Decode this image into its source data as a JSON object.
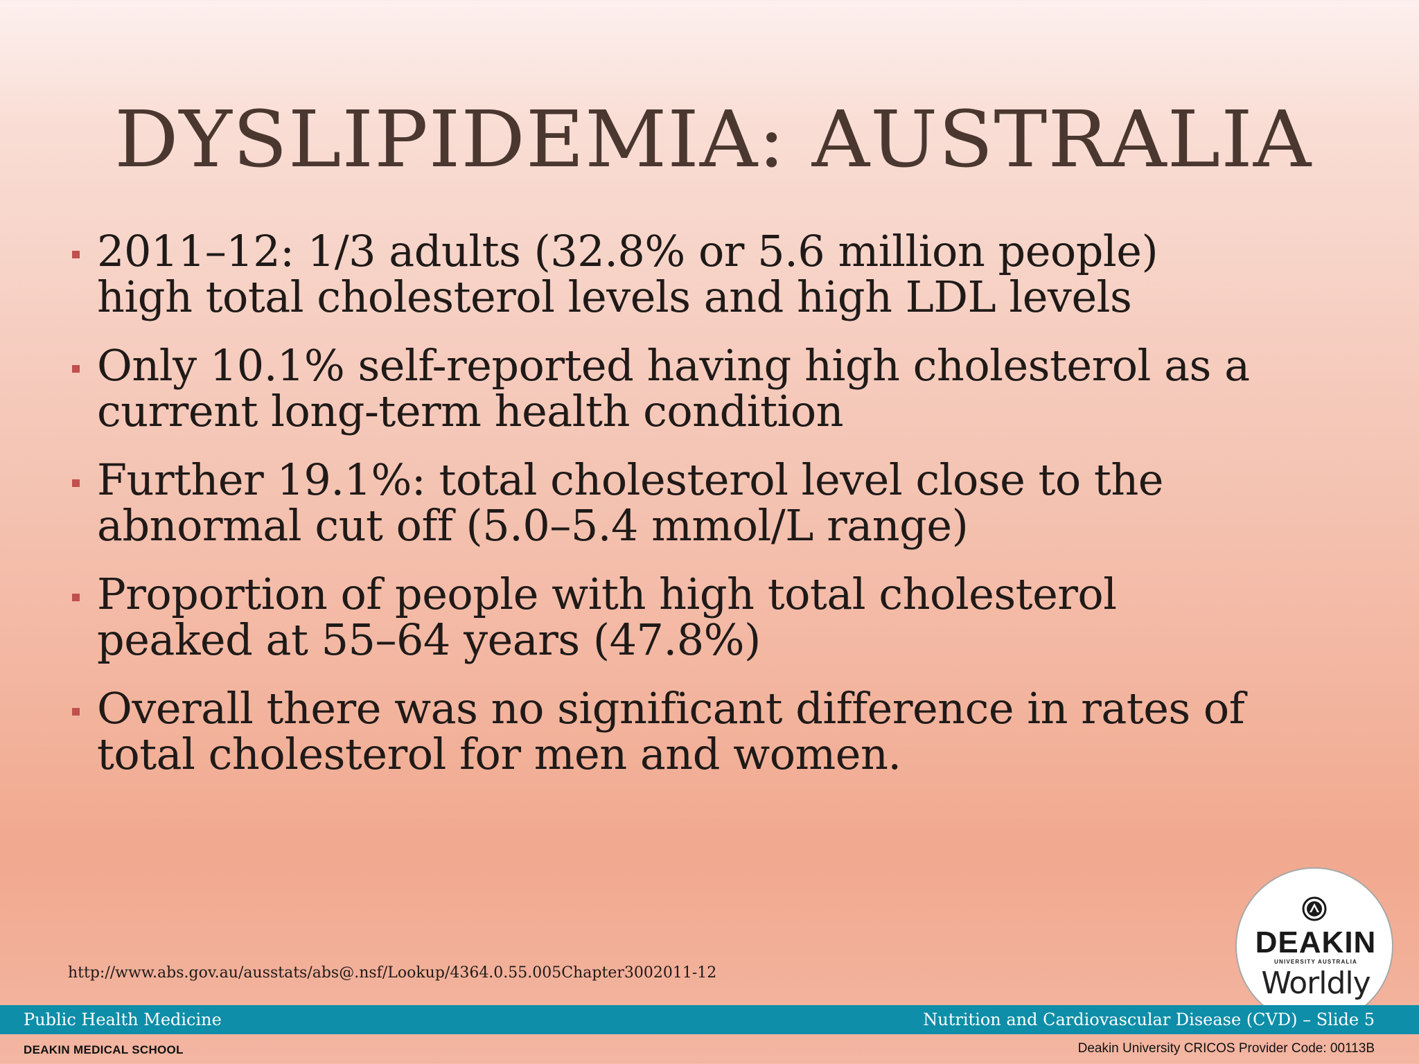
{
  "slide": {
    "title": "DYSLIPIDEMIA: AUSTRALIA",
    "bullets": [
      "2011–12: 1/3 adults (32.8% or 5.6 million people) high total cholesterol levels and high LDL levels",
      "Only 10.1% self-reported having high cholesterol as a current long-term health condition",
      "Further 19.1%: total cholesterol level close to the abnormal cut off (5.0–5.4 mmol/L range)",
      "Proportion of people with high total cholesterol peaked at 55–64 years (47.8%)",
      "Overall there was no significant difference in rates of total cholesterol for men and women."
    ],
    "source_url": "http://www.abs.gov.au/ausstats/abs@.nsf/Lookup/4364.0.55.005Chapter3002011-12"
  },
  "footer": {
    "left": "Public Health Medicine",
    "right": "Nutrition and Cardiovascular Disease (CVD) – Slide 5",
    "bottom_left": "DEAKIN MEDICAL SCHOOL",
    "bottom_right": "Deakin University CRICOS Provider Code: 00113B",
    "bar_color": "#0e8ea8"
  },
  "logo": {
    "name": "DEAKIN",
    "subtitle": "UNIVERSITY AUSTRALIA",
    "tagline": "Worldly",
    "icon": "deakin-crest-icon"
  },
  "colors": {
    "title": "#4a3730",
    "bullet_marker": "#c0504d",
    "text": "#1f1a18"
  }
}
